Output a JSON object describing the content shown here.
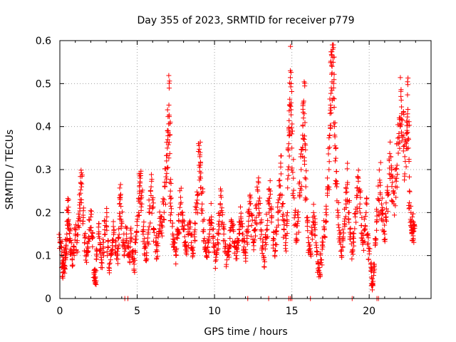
{
  "chart_data": {
    "type": "scatter",
    "title": "Day 355 of 2023, SRMTID for receiver p779",
    "xlabel": "GPS time / hours",
    "ylabel": "SRMTID / TECUs",
    "xlim": [
      0,
      24.0
    ],
    "ylim": [
      0,
      0.6
    ],
    "xticks": [
      0,
      5,
      10,
      15,
      20
    ],
    "yticks": [
      0,
      0.1,
      0.2,
      0.3,
      0.4,
      0.5,
      0.6
    ],
    "xtick_labels": [
      "0",
      "5",
      "10",
      "15",
      "20"
    ],
    "ytick_labels": [
      "0",
      "0.1",
      "0.2",
      "0.3",
      "0.4",
      "0.5",
      "0.6"
    ],
    "grid": true,
    "marker": "plus",
    "color": "#ff0000",
    "series": [
      {
        "name": "SRMTID",
        "points": [
          [
            0.0,
            0.13
          ],
          [
            0.1,
            0.12
          ],
          [
            0.15,
            0.08
          ],
          [
            0.2,
            0.06
          ],
          [
            0.25,
            0.09
          ],
          [
            0.3,
            0.07
          ],
          [
            0.35,
            0.1
          ],
          [
            0.4,
            0.12
          ],
          [
            0.45,
            0.15
          ],
          [
            0.5,
            0.18
          ],
          [
            0.55,
            0.2
          ],
          [
            0.6,
            0.16
          ],
          [
            0.65,
            0.14
          ],
          [
            0.7,
            0.11
          ],
          [
            0.8,
            0.09
          ],
          [
            0.9,
            0.12
          ],
          [
            1.0,
            0.15
          ],
          [
            1.1,
            0.13
          ],
          [
            1.2,
            0.17
          ],
          [
            1.3,
            0.21
          ],
          [
            1.35,
            0.27
          ],
          [
            1.4,
            0.26
          ],
          [
            1.5,
            0.18
          ],
          [
            1.6,
            0.13
          ],
          [
            1.7,
            0.1
          ],
          [
            1.8,
            0.12
          ],
          [
            1.9,
            0.16
          ],
          [
            2.0,
            0.19
          ],
          [
            2.1,
            0.14
          ],
          [
            2.2,
            0.06
          ],
          [
            2.25,
            0.05
          ],
          [
            2.3,
            0.05
          ],
          [
            2.4,
            0.11
          ],
          [
            2.5,
            0.15
          ],
          [
            2.6,
            0.13
          ],
          [
            2.7,
            0.09
          ],
          [
            2.8,
            0.12
          ],
          [
            2.9,
            0.16
          ],
          [
            3.0,
            0.18
          ],
          [
            3.1,
            0.12
          ],
          [
            3.2,
            0.07
          ],
          [
            3.3,
            0.1
          ],
          [
            3.4,
            0.13
          ],
          [
            3.5,
            0.16
          ],
          [
            3.6,
            0.12
          ],
          [
            3.7,
            0.1
          ],
          [
            3.8,
            0.14
          ],
          [
            3.85,
            0.22
          ],
          [
            3.9,
            0.23
          ],
          [
            4.0,
            0.18
          ],
          [
            4.1,
            0.13
          ],
          [
            4.2,
            0.11
          ],
          [
            4.3,
            0.15
          ],
          [
            4.4,
            0.12
          ],
          [
            4.5,
            0.1
          ],
          [
            4.6,
            0.14
          ],
          [
            4.7,
            0.11
          ],
          [
            4.8,
            0.08
          ],
          [
            4.9,
            0.13
          ],
          [
            5.0,
            0.17
          ],
          [
            5.1,
            0.2
          ],
          [
            5.15,
            0.25
          ],
          [
            5.2,
            0.28
          ],
          [
            5.3,
            0.22
          ],
          [
            5.4,
            0.16
          ],
          [
            5.5,
            0.12
          ],
          [
            5.6,
            0.1
          ],
          [
            5.7,
            0.15
          ],
          [
            5.8,
            0.2
          ],
          [
            5.9,
            0.26
          ],
          [
            6.0,
            0.21
          ],
          [
            6.1,
            0.16
          ],
          [
            6.2,
            0.13
          ],
          [
            6.3,
            0.11
          ],
          [
            6.4,
            0.15
          ],
          [
            6.5,
            0.19
          ],
          [
            6.6,
            0.17
          ],
          [
            6.7,
            0.22
          ],
          [
            6.8,
            0.26
          ],
          [
            6.9,
            0.32
          ],
          [
            6.95,
            0.35
          ],
          [
            7.0,
            0.39
          ],
          [
            7.05,
            0.45
          ],
          [
            7.1,
            0.38
          ],
          [
            7.15,
            0.25
          ],
          [
            7.2,
            0.2
          ],
          [
            7.3,
            0.15
          ],
          [
            7.4,
            0.12
          ],
          [
            7.5,
            0.1
          ],
          [
            7.6,
            0.14
          ],
          [
            7.7,
            0.18
          ],
          [
            7.8,
            0.22
          ],
          [
            7.9,
            0.2
          ],
          [
            8.0,
            0.16
          ],
          [
            8.1,
            0.13
          ],
          [
            8.2,
            0.11
          ],
          [
            8.3,
            0.15
          ],
          [
            8.4,
            0.18
          ],
          [
            8.5,
            0.13
          ],
          [
            8.6,
            0.1
          ],
          [
            8.7,
            0.15
          ],
          [
            8.8,
            0.2
          ],
          [
            8.9,
            0.24
          ],
          [
            9.0,
            0.31
          ],
          [
            9.05,
            0.33
          ],
          [
            9.1,
            0.28
          ],
          [
            9.2,
            0.22
          ],
          [
            9.3,
            0.16
          ],
          [
            9.4,
            0.12
          ],
          [
            9.5,
            0.1
          ],
          [
            9.6,
            0.13
          ],
          [
            9.7,
            0.16
          ],
          [
            9.8,
            0.19
          ],
          [
            9.9,
            0.14
          ],
          [
            10.0,
            0.11
          ],
          [
            10.1,
            0.09
          ],
          [
            10.2,
            0.13
          ],
          [
            10.3,
            0.18
          ],
          [
            10.4,
            0.24
          ],
          [
            10.5,
            0.2
          ],
          [
            10.6,
            0.15
          ],
          [
            10.7,
            0.12
          ],
          [
            10.8,
            0.09
          ],
          [
            10.9,
            0.11
          ],
          [
            11.0,
            0.14
          ],
          [
            11.1,
            0.18
          ],
          [
            11.2,
            0.16
          ],
          [
            11.3,
            0.12
          ],
          [
            11.4,
            0.1
          ],
          [
            11.5,
            0.13
          ],
          [
            11.6,
            0.16
          ],
          [
            11.7,
            0.19
          ],
          [
            11.8,
            0.15
          ],
          [
            11.9,
            0.12
          ],
          [
            12.0,
            0.1
          ],
          [
            12.1,
            0.14
          ],
          [
            12.2,
            0.18
          ],
          [
            12.3,
            0.22
          ],
          [
            12.4,
            0.17
          ],
          [
            12.5,
            0.13
          ],
          [
            12.6,
            0.16
          ],
          [
            12.7,
            0.21
          ],
          [
            12.8,
            0.25
          ],
          [
            12.9,
            0.2
          ],
          [
            13.0,
            0.16
          ],
          [
            13.1,
            0.12
          ],
          [
            13.2,
            0.09
          ],
          [
            13.3,
            0.13
          ],
          [
            13.4,
            0.17
          ],
          [
            13.5,
            0.22
          ],
          [
            13.6,
            0.25
          ],
          [
            13.7,
            0.19
          ],
          [
            13.8,
            0.14
          ],
          [
            13.9,
            0.11
          ],
          [
            14.0,
            0.15
          ],
          [
            14.1,
            0.2
          ],
          [
            14.2,
            0.24
          ],
          [
            14.3,
            0.29
          ],
          [
            14.4,
            0.22
          ],
          [
            14.5,
            0.16
          ],
          [
            14.6,
            0.13
          ],
          [
            14.7,
            0.18
          ],
          [
            14.75,
            0.3
          ],
          [
            14.8,
            0.36
          ],
          [
            14.85,
            0.45
          ],
          [
            14.9,
            0.53
          ],
          [
            14.95,
            0.5
          ],
          [
            15.0,
            0.35
          ],
          [
            15.1,
            0.28
          ],
          [
            15.2,
            0.2
          ],
          [
            15.3,
            0.15
          ],
          [
            15.4,
            0.18
          ],
          [
            15.5,
            0.24
          ],
          [
            15.6,
            0.3
          ],
          [
            15.7,
            0.38
          ],
          [
            15.75,
            0.42
          ],
          [
            15.8,
            0.43
          ],
          [
            15.85,
            0.36
          ],
          [
            15.9,
            0.26
          ],
          [
            16.0,
            0.18
          ],
          [
            16.1,
            0.13
          ],
          [
            16.2,
            0.11
          ],
          [
            16.3,
            0.15
          ],
          [
            16.4,
            0.2
          ],
          [
            16.5,
            0.16
          ],
          [
            16.6,
            0.11
          ],
          [
            16.7,
            0.08
          ],
          [
            16.8,
            0.06
          ],
          [
            16.9,
            0.09
          ],
          [
            17.0,
            0.12
          ],
          [
            17.1,
            0.16
          ],
          [
            17.2,
            0.2
          ],
          [
            17.3,
            0.24
          ],
          [
            17.4,
            0.3
          ],
          [
            17.45,
            0.38
          ],
          [
            17.5,
            0.45
          ],
          [
            17.55,
            0.49
          ],
          [
            17.6,
            0.54
          ],
          [
            17.65,
            0.58
          ],
          [
            17.7,
            0.49
          ],
          [
            17.75,
            0.4
          ],
          [
            17.8,
            0.32
          ],
          [
            17.9,
            0.26
          ],
          [
            18.0,
            0.2
          ],
          [
            18.1,
            0.15
          ],
          [
            18.2,
            0.11
          ],
          [
            18.3,
            0.14
          ],
          [
            18.4,
            0.18
          ],
          [
            18.5,
            0.22
          ],
          [
            18.6,
            0.27
          ],
          [
            18.7,
            0.2
          ],
          [
            18.8,
            0.15
          ],
          [
            18.9,
            0.11
          ],
          [
            19.0,
            0.14
          ],
          [
            19.1,
            0.19
          ],
          [
            19.2,
            0.24
          ],
          [
            19.3,
            0.28
          ],
          [
            19.4,
            0.22
          ],
          [
            19.5,
            0.17
          ],
          [
            19.6,
            0.13
          ],
          [
            19.7,
            0.16
          ],
          [
            19.8,
            0.2
          ],
          [
            19.9,
            0.15
          ],
          [
            20.0,
            0.11
          ],
          [
            20.1,
            0.08
          ],
          [
            20.15,
            0.05
          ],
          [
            20.2,
            0.02
          ],
          [
            20.25,
            0.04
          ],
          [
            20.3,
            0.08
          ],
          [
            20.4,
            0.13
          ],
          [
            20.5,
            0.18
          ],
          [
            20.6,
            0.23
          ],
          [
            20.7,
            0.27
          ],
          [
            20.8,
            0.22
          ],
          [
            20.9,
            0.18
          ],
          [
            21.0,
            0.15
          ],
          [
            21.1,
            0.19
          ],
          [
            21.2,
            0.24
          ],
          [
            21.3,
            0.29
          ],
          [
            21.4,
            0.33
          ],
          [
            21.5,
            0.27
          ],
          [
            21.6,
            0.22
          ],
          [
            21.7,
            0.26
          ],
          [
            21.8,
            0.31
          ],
          [
            21.9,
            0.36
          ],
          [
            22.0,
            0.42
          ],
          [
            22.05,
            0.47
          ],
          [
            22.1,
            0.43
          ],
          [
            22.2,
            0.38
          ],
          [
            22.3,
            0.33
          ],
          [
            22.4,
            0.36
          ],
          [
            22.45,
            0.41
          ],
          [
            22.5,
            0.44
          ],
          [
            22.55,
            0.37
          ],
          [
            22.6,
            0.25
          ],
          [
            22.7,
            0.2
          ],
          [
            22.75,
            0.16
          ],
          [
            22.8,
            0.18
          ],
          [
            22.85,
            0.14
          ],
          [
            22.9,
            0.17
          ]
        ],
        "baseline_points": [
          [
            4.2,
            0.0
          ],
          [
            4.4,
            0.0
          ],
          [
            12.15,
            0.0
          ],
          [
            13.5,
            0.0
          ],
          [
            14.8,
            0.0
          ],
          [
            14.9,
            0.0
          ],
          [
            15.0,
            0.0
          ],
          [
            16.2,
            0.0
          ],
          [
            18.9,
            0.0
          ],
          [
            20.5,
            0.0
          ],
          [
            20.6,
            0.0
          ]
        ]
      }
    ]
  }
}
